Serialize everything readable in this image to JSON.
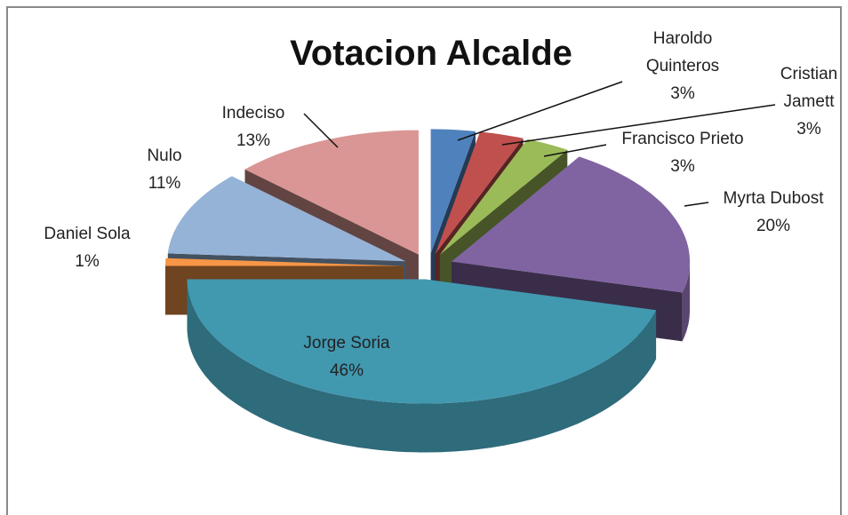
{
  "chart_data": {
    "type": "pie3d",
    "title": "Votacion Alcalde",
    "categories": [
      "Haroldo Quinteros",
      "Cristian Jamett",
      "Francisco Prieto",
      "Myrta Dubost",
      "Jorge Soria",
      "Daniel Sola",
      "Nulo",
      "Indeciso"
    ],
    "values": [
      3,
      3,
      3,
      20,
      46,
      1,
      11,
      13
    ],
    "value_labels": [
      "3%",
      "3%",
      "3%",
      "20%",
      "46%",
      "1%",
      "11%",
      "13%"
    ],
    "colors": [
      "#4f81bd",
      "#c0504d",
      "#9bbb59",
      "#8064a2",
      "#4199b0",
      "#f79646",
      "#95b3d7",
      "#d99694"
    ]
  }
}
